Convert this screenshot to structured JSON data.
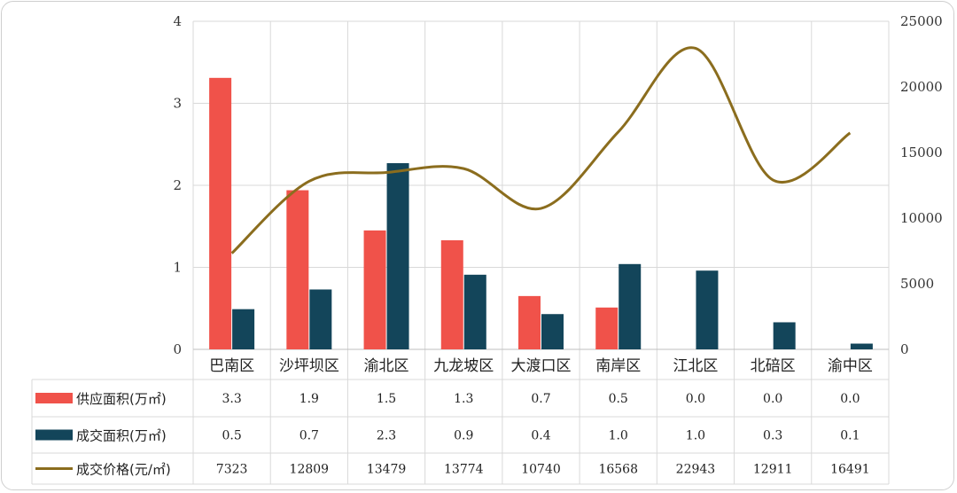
{
  "chart_data": {
    "type": "bar",
    "categories": [
      "巴南区",
      "沙坪坝区",
      "渝北区",
      "九龙坡区",
      "大渡口区",
      "南岸区",
      "江北区",
      "北碚区",
      "渝中区"
    ],
    "series": [
      {
        "name": "供应面积(万㎡)",
        "type": "bar",
        "axis": "left",
        "color": "#f0524a",
        "values": [
          3.31,
          1.94,
          1.45,
          1.33,
          0.65,
          0.51,
          0.0,
          0.0,
          0.0
        ],
        "table_values": [
          "3.3",
          "1.9",
          "1.5",
          "1.3",
          "0.7",
          "0.5",
          "0.0",
          "0.0",
          "0.0"
        ]
      },
      {
        "name": "成交面积(万㎡)",
        "type": "bar",
        "axis": "left",
        "color": "#13455a",
        "values": [
          0.49,
          0.73,
          2.27,
          0.91,
          0.43,
          1.04,
          0.96,
          0.33,
          0.07
        ],
        "table_values": [
          "0.5",
          "0.7",
          "2.3",
          "0.9",
          "0.4",
          "1.0",
          "1.0",
          "0.3",
          "0.1"
        ]
      },
      {
        "name": "成交价格(元/㎡)",
        "type": "line",
        "axis": "right",
        "color": "#8b6d1e",
        "values": [
          7323,
          12809,
          13479,
          13774,
          10740,
          16568,
          22943,
          12911,
          16491
        ],
        "table_values": [
          "7323",
          "12809",
          "13479",
          "13774",
          "10740",
          "16568",
          "22943",
          "12911",
          "16491"
        ]
      }
    ],
    "y_left": {
      "min": 0,
      "max": 4,
      "ticks": [
        "0",
        "1",
        "2",
        "3",
        "4"
      ]
    },
    "y_right": {
      "min": 0,
      "max": 25000,
      "ticks": [
        "0",
        "5000",
        "10000",
        "15000",
        "20000",
        "25000"
      ]
    },
    "grid": true,
    "legend": "data-table"
  }
}
